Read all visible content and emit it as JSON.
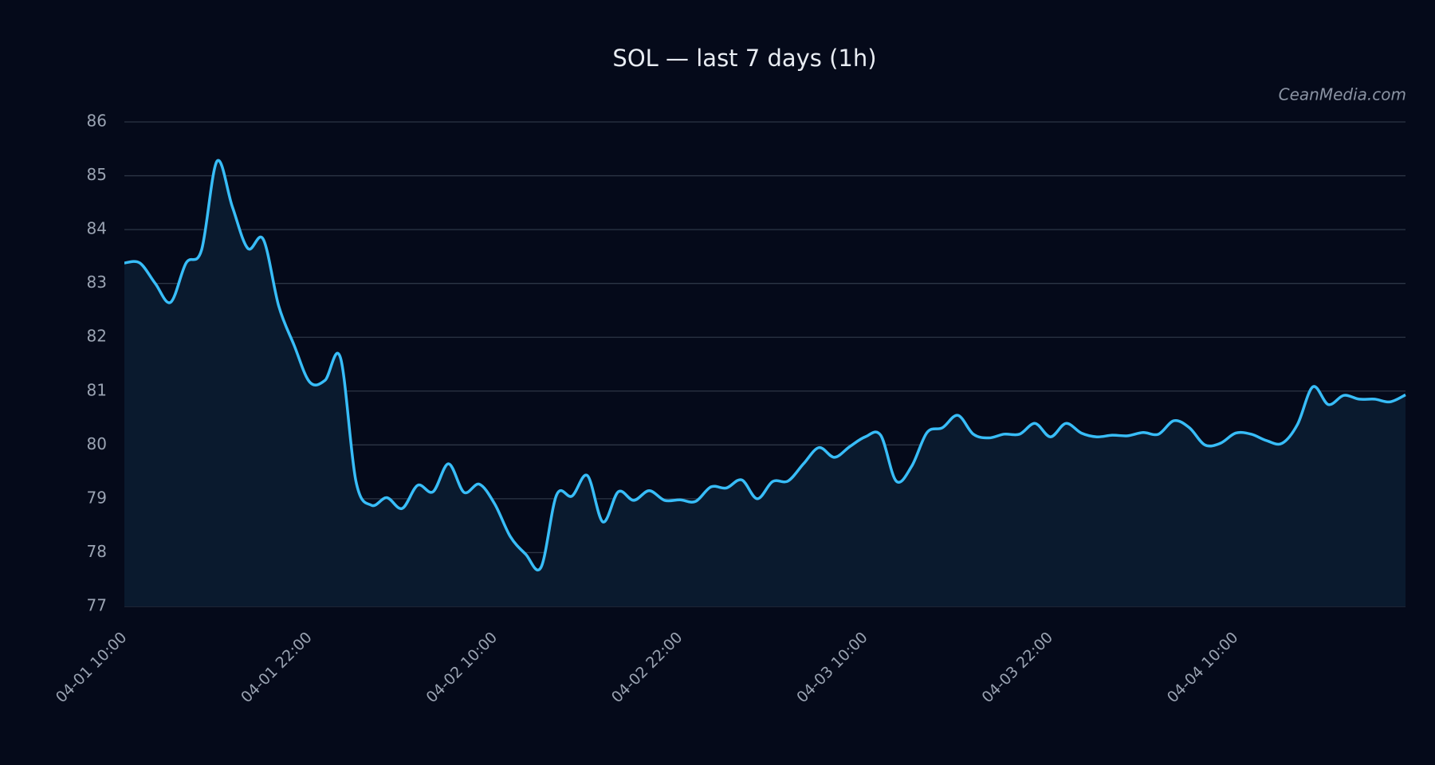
{
  "chart_data": {
    "type": "line",
    "title": "SOL — last 7 days (1h)",
    "watermark": "CeanMedia.com",
    "x": [
      "04-01 10:00",
      "04-01 11:00",
      "04-01 12:00",
      "04-01 13:00",
      "04-01 14:00",
      "04-01 15:00",
      "04-01 16:00",
      "04-01 17:00",
      "04-01 18:00",
      "04-01 19:00",
      "04-01 20:00",
      "04-01 21:00",
      "04-01 22:00",
      "04-01 23:00",
      "04-02 00:00",
      "04-02 01:00",
      "04-02 02:00",
      "04-02 03:00",
      "04-02 04:00",
      "04-02 05:00",
      "04-02 06:00",
      "04-02 07:00",
      "04-02 08:00",
      "04-02 09:00",
      "04-02 10:00",
      "04-02 11:00",
      "04-02 12:00",
      "04-02 13:00",
      "04-02 14:00",
      "04-02 15:00",
      "04-02 16:00",
      "04-02 17:00",
      "04-02 18:00",
      "04-02 19:00",
      "04-02 20:00",
      "04-02 21:00",
      "04-02 22:00",
      "04-02 23:00",
      "04-03 00:00",
      "04-03 01:00",
      "04-03 02:00",
      "04-03 03:00",
      "04-03 04:00",
      "04-03 05:00",
      "04-03 06:00",
      "04-03 07:00",
      "04-03 08:00",
      "04-03 09:00",
      "04-03 10:00",
      "04-03 11:00",
      "04-03 12:00",
      "04-03 13:00",
      "04-03 14:00",
      "04-03 15:00",
      "04-03 16:00",
      "04-03 17:00",
      "04-03 18:00",
      "04-03 19:00",
      "04-03 20:00",
      "04-03 21:00",
      "04-03 22:00",
      "04-03 23:00",
      "04-04 00:00",
      "04-04 01:00",
      "04-04 02:00",
      "04-04 03:00",
      "04-04 04:00",
      "04-04 05:00",
      "04-04 06:00",
      "04-04 07:00",
      "04-04 08:00",
      "04-04 09:00",
      "04-04 10:00",
      "04-04 11:00",
      "04-04 12:00",
      "04-04 13:00",
      "04-04 14:00",
      "04-04 15:00",
      "04-04 16:00",
      "04-04 17:00",
      "04-04 18:00",
      "04-04 19:00",
      "04-04 20:00",
      "04-04 21:00"
    ],
    "series": [
      {
        "name": "SOL",
        "color": "#38bdf8",
        "fill": "#0a1a2e",
        "values": [
          83.38,
          83.38,
          83.0,
          82.65,
          83.38,
          83.62,
          85.27,
          84.42,
          83.65,
          83.82,
          82.58,
          81.85,
          81.17,
          81.2,
          81.62,
          79.33,
          78.88,
          79.02,
          78.82,
          79.25,
          79.13,
          79.65,
          79.12,
          79.27,
          78.9,
          78.3,
          77.97,
          77.73,
          79.07,
          79.05,
          79.43,
          78.57,
          79.13,
          78.97,
          79.15,
          78.97,
          78.98,
          78.95,
          79.22,
          79.2,
          79.35,
          79.0,
          79.32,
          79.33,
          79.65,
          79.95,
          79.77,
          79.97,
          80.15,
          80.18,
          79.33,
          79.6,
          80.23,
          80.32,
          80.55,
          80.2,
          80.13,
          80.2,
          80.2,
          80.4,
          80.15,
          80.4,
          80.22,
          80.15,
          80.18,
          80.17,
          80.23,
          80.2,
          80.45,
          80.32,
          80.0,
          80.03,
          80.22,
          80.2,
          80.08,
          80.03,
          80.38,
          81.08,
          80.75,
          80.92,
          80.85,
          80.85,
          80.8,
          80.93
        ]
      }
    ],
    "ylim": [
      77,
      86
    ],
    "yticks": [
      77,
      78,
      79,
      80,
      81,
      82,
      83,
      84,
      85,
      86
    ],
    "grid": true,
    "xtick_every": 12
  }
}
